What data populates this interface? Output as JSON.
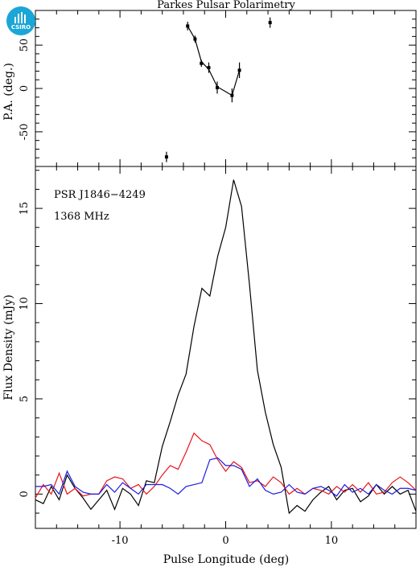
{
  "logo": {
    "text": "CSIRO",
    "icon": "csiro-logo-icon",
    "color": "#1aa6d6"
  },
  "chart_data": [
    {
      "type": "scatter",
      "title": "Parkes Pulsar Polarimetry",
      "ylabel": "P.A. (deg.)",
      "xlim": [
        -18,
        18
      ],
      "ylim": [
        -90,
        90
      ],
      "yticks": [
        -50,
        0,
        50
      ],
      "points": [
        {
          "x": -5.6,
          "y": -79,
          "err": 6
        },
        {
          "x": -3.6,
          "y": 72,
          "err": 5
        },
        {
          "x": -2.9,
          "y": 57,
          "err": 4
        },
        {
          "x": -2.3,
          "y": 29,
          "err": 4
        },
        {
          "x": -1.6,
          "y": 24,
          "err": 6
        },
        {
          "x": -0.8,
          "y": 1,
          "err": 7
        },
        {
          "x": 0.6,
          "y": -8,
          "err": 8
        },
        {
          "x": 1.3,
          "y": 21,
          "err": 9
        },
        {
          "x": 4.2,
          "y": 76,
          "err": 6
        }
      ],
      "curve": [
        [
          -3.6,
          72
        ],
        [
          -2.9,
          57
        ],
        [
          -2.3,
          31
        ],
        [
          -1.6,
          22
        ],
        [
          -0.8,
          2
        ],
        [
          0.6,
          -8
        ],
        [
          1.3,
          21
        ]
      ]
    },
    {
      "type": "line",
      "xlabel": "Pulse Longitude (deg)",
      "ylabel": "Flux Density (mJy)",
      "xlim": [
        -18,
        18
      ],
      "ylim": [
        -1.8,
        17.2
      ],
      "xticks": [
        -10,
        0,
        10
      ],
      "yticks": [
        0,
        5,
        10,
        15
      ],
      "annotations": [
        "PSR J1846−4249",
        "1368 MHz"
      ],
      "x": [
        -18,
        -17.25,
        -16.5,
        -15.75,
        -15,
        -14.25,
        -13.5,
        -12.75,
        -12,
        -11.25,
        -10.5,
        -9.75,
        -9,
        -8.25,
        -7.5,
        -6.75,
        -6,
        -5.25,
        -4.5,
        -3.75,
        -3,
        -2.25,
        -1.5,
        -0.75,
        0,
        0.75,
        1.5,
        2.25,
        3,
        3.75,
        4.5,
        5.25,
        6,
        6.75,
        7.5,
        8.25,
        9,
        9.75,
        10.5,
        11.25,
        12,
        12.75,
        13.5,
        14.25,
        15,
        15.75,
        16.5,
        17.25,
        18
      ],
      "series": [
        {
          "color": "#000000",
          "values": [
            -0.3,
            -0.5,
            0.4,
            -0.3,
            1.0,
            0.3,
            -0.2,
            -0.8,
            -0.3,
            0.2,
            -0.8,
            0.3,
            0.0,
            -0.6,
            0.7,
            0.6,
            2.5,
            3.8,
            5.2,
            6.3,
            8.8,
            10.8,
            10.4,
            12.5,
            14.0,
            16.5,
            15.1,
            11.0,
            6.5,
            4.3,
            2.6,
            1.4,
            -1.0,
            -0.6,
            -0.9,
            -0.3,
            0.1,
            0.4,
            -0.3,
            0.2,
            0.3,
            -0.4,
            -0.1,
            0.5,
            0.0,
            0.4,
            0.0,
            0.2,
            -0.9
          ]
        },
        {
          "color": "#e8141b",
          "values": [
            -0.2,
            0.5,
            0.0,
            1.1,
            0.0,
            0.3,
            -0.1,
            0.0,
            0.0,
            0.7,
            0.9,
            0.8,
            0.3,
            0.5,
            0.0,
            0.4,
            1.0,
            1.5,
            1.3,
            2.2,
            3.2,
            2.8,
            2.6,
            1.8,
            1.2,
            1.7,
            1.4,
            0.6,
            0.7,
            0.4,
            0.9,
            0.6,
            0.0,
            0.3,
            0.0,
            0.3,
            0.2,
            0.0,
            0.4,
            0.1,
            0.5,
            0.1,
            0.6,
            0.0,
            0.1,
            0.6,
            0.9,
            0.6,
            0.2
          ]
        },
        {
          "color": "#1c1ce0",
          "values": [
            0.4,
            0.4,
            0.5,
            0.0,
            1.2,
            0.4,
            0.1,
            0.0,
            0.0,
            0.5,
            0.1,
            0.6,
            0.3,
            0.0,
            0.5,
            0.5,
            0.5,
            0.3,
            0.0,
            0.4,
            0.5,
            0.6,
            1.8,
            1.9,
            1.5,
            1.5,
            1.3,
            0.4,
            0.8,
            0.2,
            0.0,
            0.1,
            0.5,
            0.1,
            0.0,
            0.3,
            0.4,
            0.2,
            -0.1,
            0.5,
            0.1,
            0.3,
            0.0,
            0.5,
            0.2,
            0.0,
            0.3,
            0.3,
            0.2
          ]
        }
      ]
    }
  ]
}
